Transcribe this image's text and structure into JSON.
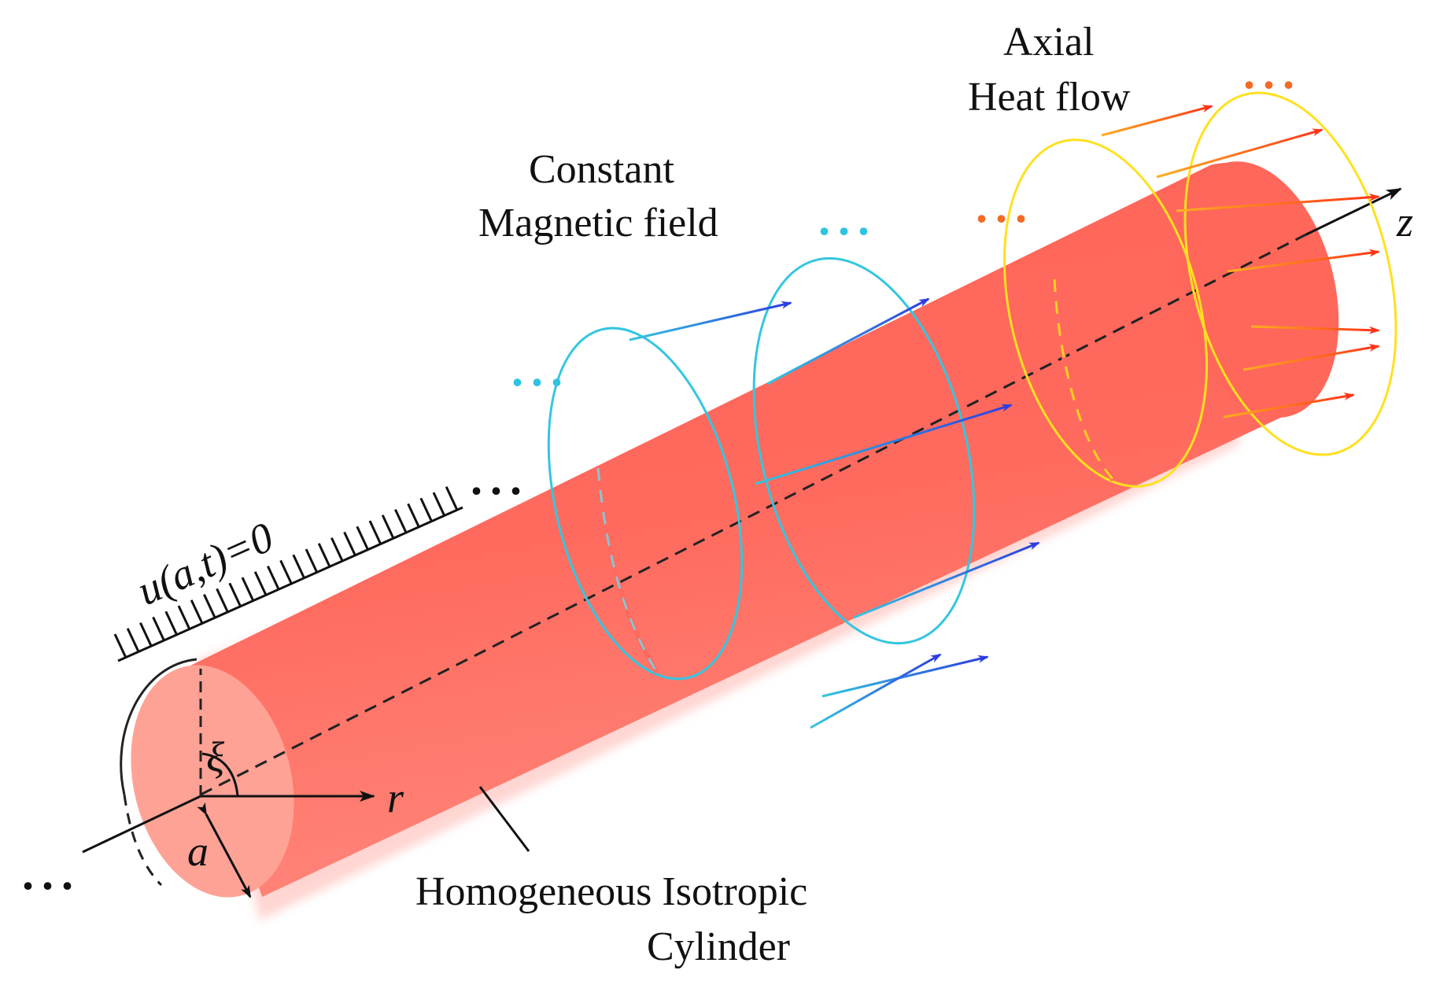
{
  "labels": {
    "magnetic_line1": "Constant",
    "magnetic_line2": "Magnetic field",
    "heat_line1": "Axial",
    "heat_line2": "Heat flow",
    "cylinder_line1": "Homogeneous Isotropic",
    "cylinder_line2": "Cylinder",
    "boundary": "u(a,t)=0",
    "axis_z": "z",
    "axis_r": "r",
    "angle": "ξ",
    "radius": "a",
    "ellipsis": "..."
  },
  "colors": {
    "cylinder": "#ff6a5e",
    "cylinder_cap": "#ffa296",
    "magnetic": "#34c6e0",
    "magnetic_arrow": "#2d3de0",
    "heat_ring": "#ffe020",
    "heat_arrow": "#ff3a1a",
    "heat_dots": "#f26a23",
    "magnetic_dots": "#2ec4e0"
  }
}
